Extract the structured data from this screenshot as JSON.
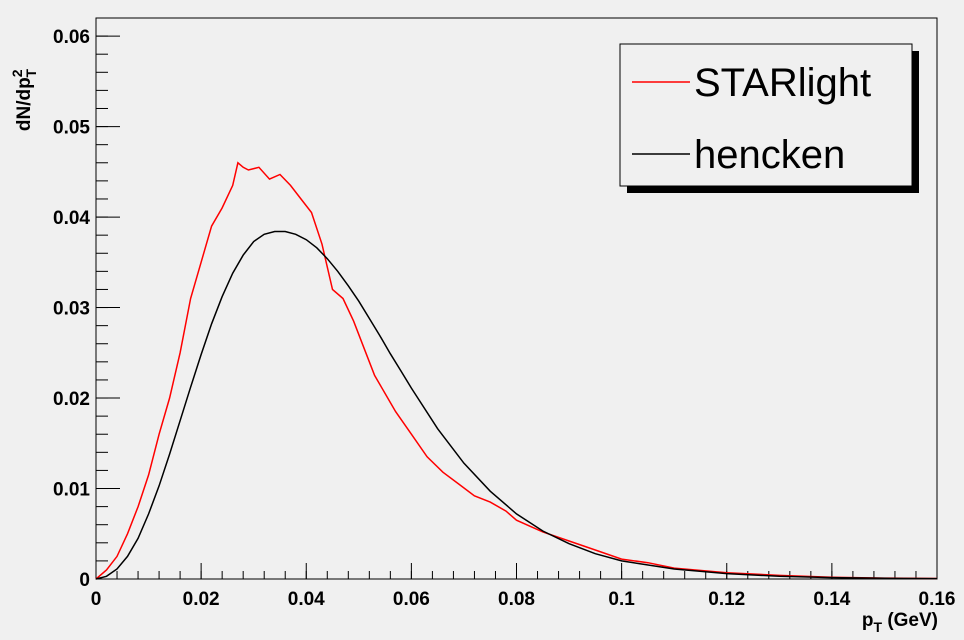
{
  "chart_data": {
    "type": "line",
    "title": "",
    "xlabel": {
      "main": "p",
      "sub": "T",
      "rest": " (GeV)"
    },
    "ylabel": {
      "main": "dN/dp",
      "sup": "2",
      "sub": "T"
    },
    "xlim": [
      0,
      0.16
    ],
    "ylim": [
      0,
      0.062
    ],
    "x_ticks": [
      0,
      0.02,
      0.04,
      0.06,
      0.08,
      0.1,
      0.12,
      0.14,
      0.16
    ],
    "x_tick_labels": [
      "0",
      "0.02",
      "0.04",
      "0.06",
      "0.08",
      "0.1",
      "0.12",
      "0.14",
      "0.16"
    ],
    "y_ticks": [
      0,
      0.01,
      0.02,
      0.03,
      0.04,
      0.05,
      0.06
    ],
    "y_tick_labels": [
      "0",
      "0.01",
      "0.02",
      "0.03",
      "0.04",
      "0.05",
      "0.06"
    ],
    "grid": false,
    "legend_position": "top-right",
    "series": [
      {
        "name": "STARlight",
        "color": "#ff0000",
        "points": [
          [
            0,
            0
          ],
          [
            0.002,
            0.001
          ],
          [
            0.004,
            0.0025
          ],
          [
            0.006,
            0.005
          ],
          [
            0.008,
            0.008
          ],
          [
            0.01,
            0.0115
          ],
          [
            0.012,
            0.016
          ],
          [
            0.014,
            0.02
          ],
          [
            0.016,
            0.025
          ],
          [
            0.018,
            0.031
          ],
          [
            0.02,
            0.035
          ],
          [
            0.022,
            0.039
          ],
          [
            0.024,
            0.041
          ],
          [
            0.026,
            0.0435
          ],
          [
            0.027,
            0.046
          ],
          [
            0.028,
            0.0455
          ],
          [
            0.029,
            0.0452
          ],
          [
            0.031,
            0.0455
          ],
          [
            0.033,
            0.0442
          ],
          [
            0.035,
            0.0447
          ],
          [
            0.037,
            0.0435
          ],
          [
            0.039,
            0.042
          ],
          [
            0.041,
            0.0405
          ],
          [
            0.043,
            0.037
          ],
          [
            0.045,
            0.032
          ],
          [
            0.047,
            0.031
          ],
          [
            0.049,
            0.0285
          ],
          [
            0.051,
            0.0255
          ],
          [
            0.053,
            0.0225
          ],
          [
            0.055,
            0.0205
          ],
          [
            0.057,
            0.0185
          ],
          [
            0.06,
            0.016
          ],
          [
            0.063,
            0.0135
          ],
          [
            0.066,
            0.0118
          ],
          [
            0.069,
            0.0105
          ],
          [
            0.072,
            0.0092
          ],
          [
            0.075,
            0.0085
          ],
          [
            0.078,
            0.0075
          ],
          [
            0.08,
            0.0065
          ],
          [
            0.085,
            0.0052
          ],
          [
            0.09,
            0.0042
          ],
          [
            0.095,
            0.0032
          ],
          [
            0.1,
            0.0022
          ],
          [
            0.105,
            0.0018
          ],
          [
            0.11,
            0.0012
          ],
          [
            0.12,
            0.0007
          ],
          [
            0.13,
            0.0004
          ],
          [
            0.14,
            0.0002
          ],
          [
            0.15,
            0.0001
          ],
          [
            0.16,
            5e-05
          ]
        ]
      },
      {
        "name": "hencken",
        "color": "#000000",
        "points": [
          [
            0,
            0
          ],
          [
            0.002,
            0.0003
          ],
          [
            0.004,
            0.0011
          ],
          [
            0.006,
            0.0025
          ],
          [
            0.008,
            0.0045
          ],
          [
            0.01,
            0.0072
          ],
          [
            0.012,
            0.0103
          ],
          [
            0.014,
            0.0138
          ],
          [
            0.016,
            0.0175
          ],
          [
            0.018,
            0.0212
          ],
          [
            0.02,
            0.0248
          ],
          [
            0.022,
            0.0282
          ],
          [
            0.024,
            0.0312
          ],
          [
            0.026,
            0.0338
          ],
          [
            0.028,
            0.0358
          ],
          [
            0.03,
            0.0373
          ],
          [
            0.032,
            0.0381
          ],
          [
            0.034,
            0.0384
          ],
          [
            0.036,
            0.0384
          ],
          [
            0.038,
            0.0381
          ],
          [
            0.04,
            0.0375
          ],
          [
            0.042,
            0.0366
          ],
          [
            0.044,
            0.0354
          ],
          [
            0.046,
            0.034
          ],
          [
            0.048,
            0.0324
          ],
          [
            0.05,
            0.0307
          ],
          [
            0.052,
            0.0288
          ],
          [
            0.054,
            0.0269
          ],
          [
            0.056,
            0.0249
          ],
          [
            0.058,
            0.023
          ],
          [
            0.06,
            0.0211
          ],
          [
            0.065,
            0.0166
          ],
          [
            0.07,
            0.0128
          ],
          [
            0.075,
            0.0097
          ],
          [
            0.08,
            0.0072
          ],
          [
            0.085,
            0.0053
          ],
          [
            0.09,
            0.0039
          ],
          [
            0.095,
            0.0028
          ],
          [
            0.1,
            0.002
          ],
          [
            0.11,
            0.0011
          ],
          [
            0.12,
            0.0006
          ],
          [
            0.13,
            0.0003
          ],
          [
            0.14,
            0.00015
          ],
          [
            0.15,
            8e-05
          ],
          [
            0.16,
            4e-05
          ]
        ]
      }
    ]
  }
}
